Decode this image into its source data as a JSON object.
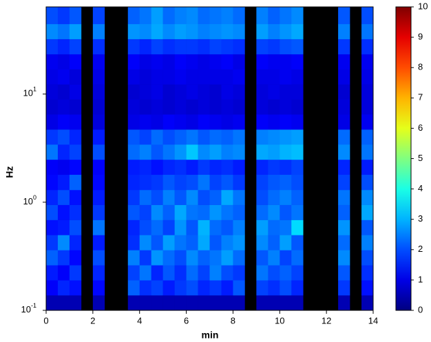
{
  "chart_data": {
    "type": "heatmap",
    "xlabel": "min",
    "ylabel": "Hz",
    "xbins": [
      0,
      0.5,
      1,
      1.5,
      2,
      2.5,
      3,
      3.5,
      4,
      4.5,
      5,
      5.5,
      6,
      6.5,
      7,
      7.5,
      8,
      8.5,
      9,
      9.5,
      10,
      10.5,
      11,
      11.5,
      12,
      12.5,
      13,
      13.5,
      14
    ],
    "ybins": [
      0.1,
      0.138,
      0.19,
      0.262,
      0.361,
      0.498,
      0.686,
      0.946,
      1.3,
      1.8,
      2.48,
      3.42,
      4.71,
      6.49,
      8.95,
      12.3,
      17,
      23.4,
      32.3,
      44.5,
      64
    ],
    "values": [
      [
        0.5,
        1.2,
        1.5,
        2.2,
        1.8,
        1.4,
        2,
        1.6,
        1.3,
        1.2,
        2.4,
        1.8,
        1,
        0.8,
        0.9,
        1,
        1.1,
        1.8,
        2.6,
        2
      ],
      [
        0.5,
        1.6,
        1.2,
        1.8,
        2.6,
        1.5,
        1.4,
        2,
        1.5,
        1.1,
        1.6,
        2,
        1.2,
        0.9,
        0.8,
        1.1,
        1,
        1.6,
        2.4,
        1.8
      ],
      [
        0.5,
        1.4,
        1.8,
        1.3,
        1.6,
        2,
        1.7,
        1.4,
        2.2,
        1.3,
        1.9,
        1.6,
        1.1,
        0.8,
        1,
        0.9,
        1.2,
        1.9,
        2.8,
        2.1
      ],
      null,
      [
        0.5,
        1.3,
        1.6,
        2,
        1.5,
        2.4,
        1.8,
        1.5,
        1.3,
        1.2,
        2,
        1.5,
        0.9,
        0.8,
        0.9,
        1,
        1.1,
        1.7,
        2.5,
        1.9
      ],
      null,
      null,
      [
        0.5,
        2.2,
        1.9,
        2.5,
        1.7,
        1.6,
        2.1,
        1.8,
        1.6,
        1.5,
        2.3,
        2.1,
        1,
        0.9,
        0.8,
        1,
        1.2,
        1.8,
        2.7,
        2.2
      ],
      [
        0.5,
        1.7,
        2.4,
        1.8,
        2.6,
        2,
        1.9,
        2.3,
        1.7,
        1.6,
        2.5,
        1.9,
        1.1,
        0.8,
        0.9,
        0.9,
        1,
        1.6,
        2.6,
        2.4
      ],
      [
        0.5,
        1.9,
        1.6,
        2.7,
        2.1,
        2.3,
        2.6,
        2,
        1.8,
        1.4,
        2.1,
        2.3,
        1,
        0.9,
        1,
        1,
        1.1,
        1.9,
        2.9,
        2.8
      ],
      [
        0.5,
        1.5,
        2.1,
        2.3,
        2.8,
        1.9,
        2.2,
        2.5,
        2.1,
        1.6,
        2.4,
        2,
        1.2,
        0.8,
        0.8,
        1,
        1,
        1.7,
        2.6,
        2.3
      ],
      [
        0.5,
        1.8,
        1.7,
        2,
        2.4,
        2.7,
        2.9,
        2.1,
        1.9,
        1.7,
        2.7,
        2.2,
        1.1,
        0.9,
        0.9,
        1.1,
        1.2,
        1.8,
        2.8,
        2.5
      ],
      [
        0.5,
        2,
        2.3,
        2.6,
        2.2,
        2.1,
        2.4,
        2.6,
        2,
        1.5,
        3.2,
        2.4,
        1,
        0.8,
        1,
        1,
        1.1,
        1.8,
        2.7,
        2.6
      ],
      [
        0.5,
        1.6,
        1.9,
        2.2,
        2.9,
        3,
        2.3,
        2,
        2.4,
        1.8,
        2.6,
        2.1,
        1.2,
        0.9,
        0.9,
        1,
        1,
        1.7,
        2.5,
        2.3
      ],
      [
        0.5,
        1.8,
        2.5,
        2.4,
        2.1,
        2.3,
        2.7,
        2.2,
        1.9,
        1.6,
        2.8,
        2.3,
        1.1,
        0.8,
        0.8,
        1,
        1.1,
        1.9,
        2.6,
        2.4
      ],
      [
        0.5,
        1.5,
        2,
        2.8,
        2.5,
        2.1,
        2.4,
        2.9,
        2.1,
        1.7,
        2.5,
        2.2,
        1,
        0.9,
        1,
        1,
        1.2,
        1.8,
        2.7,
        2.5
      ],
      [
        0.5,
        2.1,
        1.8,
        2.3,
        2.7,
        2.5,
        2.2,
        2.4,
        1.8,
        1.5,
        2.6,
        2.4,
        1.1,
        0.8,
        0.9,
        1.1,
        1,
        1.7,
        2.6,
        2.3
      ],
      null,
      [
        0.5,
        1.9,
        2.4,
        2.1,
        2.6,
        2.8,
        2.3,
        2,
        1.9,
        1.6,
        2.9,
        2.5,
        1.2,
        0.9,
        0.9,
        1,
        1.2,
        1.9,
        2.8,
        2.5
      ],
      [
        0.5,
        1.7,
        2,
        2.5,
        2.2,
        2.3,
        2.6,
        2.3,
        2.1,
        1.8,
        2.8,
        2.6,
        1.1,
        0.8,
        1,
        1,
        1.1,
        1.8,
        2.5,
        2.2
      ],
      [
        0.5,
        2,
        2.2,
        1.9,
        2.8,
        2.4,
        2.1,
        2.5,
        2.2,
        1.7,
        3,
        2.7,
        1.2,
        0.9,
        0.9,
        1.1,
        1.1,
        2,
        2.7,
        2.4
      ],
      [
        0.5,
        1.6,
        1.9,
        2.3,
        2.1,
        3.4,
        2.4,
        2.2,
        2,
        1.9,
        3.1,
        2.8,
        1.1,
        0.8,
        0.9,
        1,
        1.2,
        2.1,
        2.9,
        2.6
      ],
      null,
      null,
      null,
      [
        0.5,
        1.8,
        2.1,
        2.6,
        2.3,
        2.7,
        2.2,
        2.4,
        1.9,
        1.6,
        2.6,
        2.3,
        1,
        0.9,
        0.8,
        1,
        1.1,
        1.8,
        2.5,
        2.1
      ],
      null,
      [
        0.5,
        1.4,
        1.7,
        2,
        2.5,
        2.1,
        2.9,
        2.6,
        2,
        1.5,
        2.4,
        2.2,
        1.1,
        0.9,
        0.9,
        1,
        1.1,
        1.7,
        2.4,
        2
      ]
    ],
    "xlim": [
      0,
      14
    ],
    "xticks": [
      0,
      2,
      4,
      6,
      8,
      10,
      12,
      14
    ],
    "ylim": [
      0.1,
      64
    ],
    "yscale": "log",
    "yticks": [
      {
        "value": 0.1,
        "label": "10",
        "exponent": "-1"
      },
      {
        "value": 1,
        "label": "10",
        "exponent": "0"
      },
      {
        "value": 10,
        "label": "10",
        "exponent": "1"
      }
    ],
    "colormap": "jet",
    "clim": [
      0,
      10
    ],
    "cticks": [
      0,
      1,
      2,
      3,
      4,
      5,
      6,
      7,
      8,
      9,
      10
    ]
  }
}
